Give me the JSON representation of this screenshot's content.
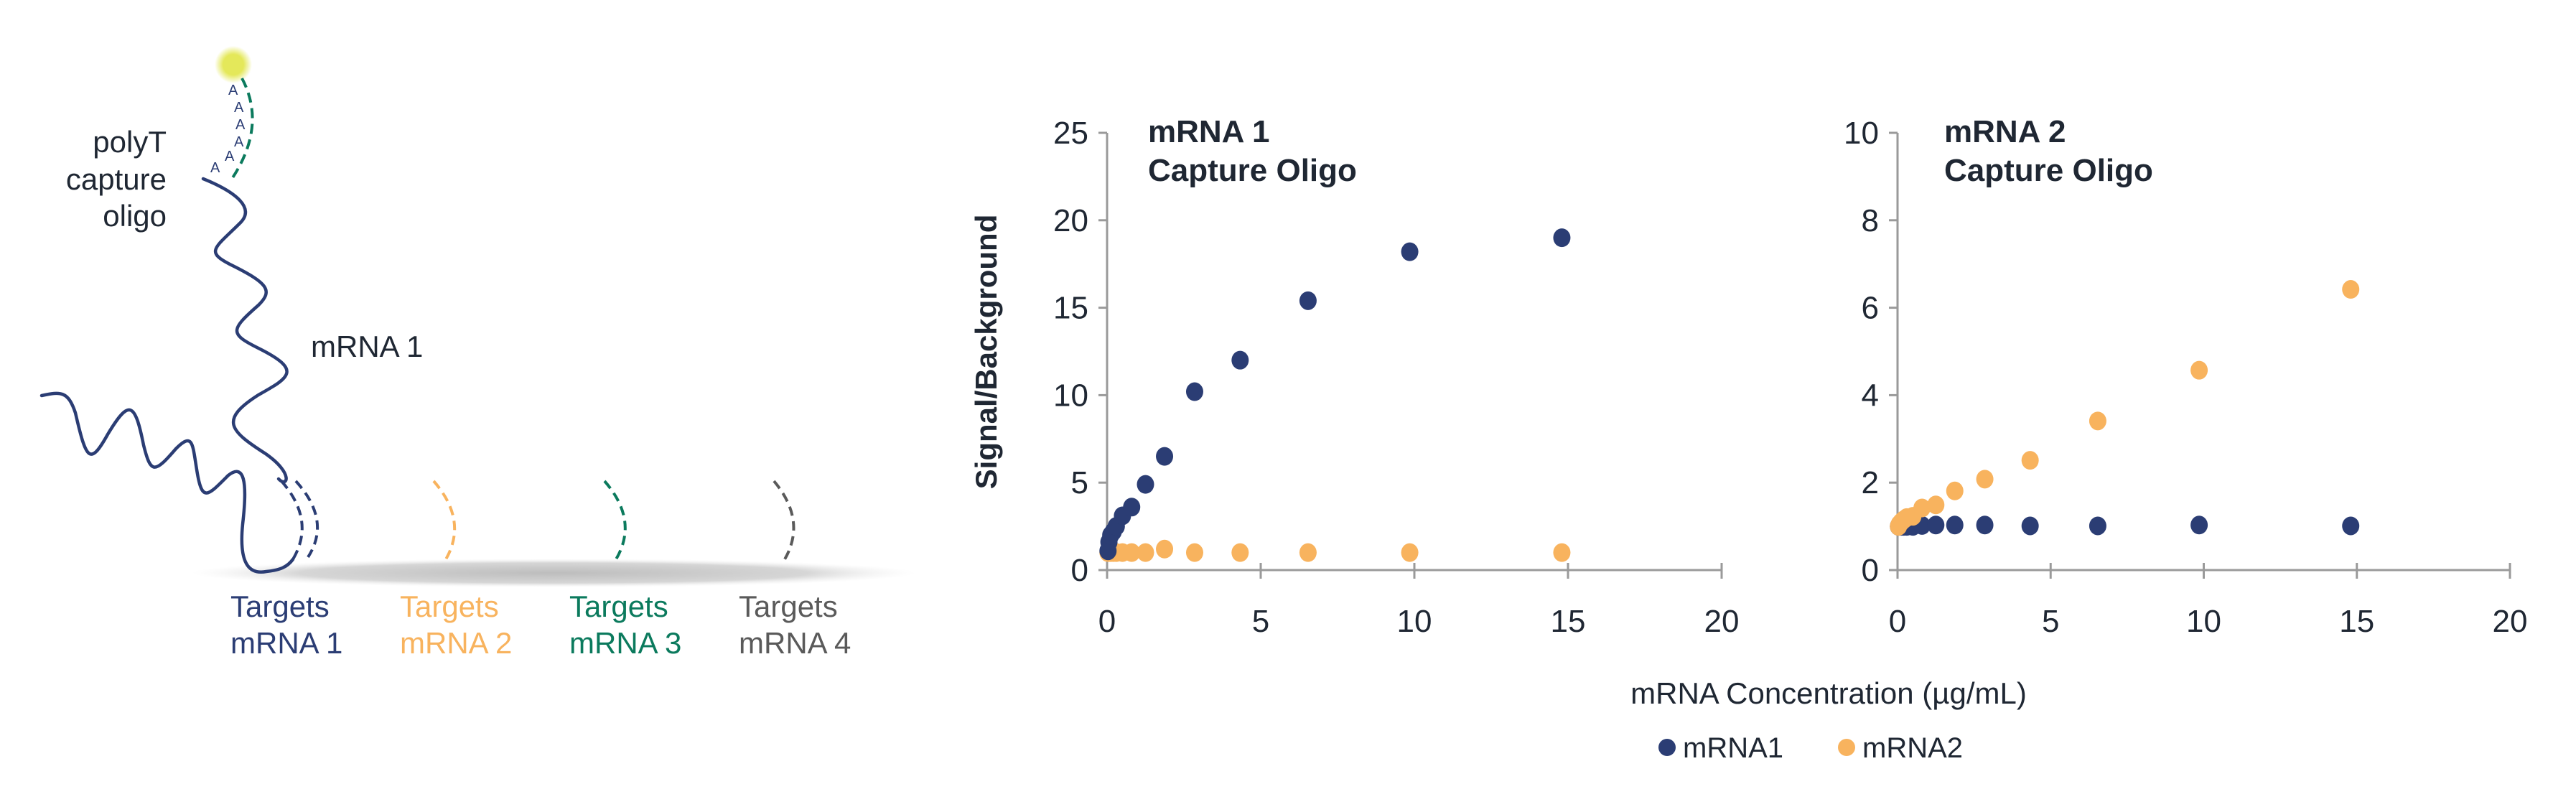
{
  "colors": {
    "mrna1": "#2b3d74",
    "mrna2": "#f8b35e",
    "mrna3": "#0b7a5d",
    "mrna4": "#5a5a5a",
    "text": "#1f2733",
    "axis": "#9a9a9a",
    "glow": "#e4e85a"
  },
  "diagram": {
    "poly_a": [
      "A",
      "A",
      "A",
      "A",
      "A",
      "A"
    ],
    "capture_label": [
      "polyT",
      "capture",
      "oligo"
    ],
    "strand_label": "mRNA 1",
    "targets": [
      {
        "line1": "Targets",
        "line2": "mRNA 1",
        "color": "#2b3d74"
      },
      {
        "line1": "Targets",
        "line2": "mRNA 2",
        "color": "#f8b35e"
      },
      {
        "line1": "Targets",
        "line2": "mRNA 3",
        "color": "#0b7a5d"
      },
      {
        "line1": "Targets",
        "line2": "mRNA 4",
        "color": "#5a5a5a"
      }
    ]
  },
  "chart_data": [
    {
      "type": "scatter",
      "title": [
        "mRNA 1",
        "Capture Oligo"
      ],
      "ylabel": "Signal/Background",
      "xlim": [
        0,
        20
      ],
      "ylim": [
        0,
        25
      ],
      "xticks": [
        0,
        5,
        10,
        15,
        20
      ],
      "yticks": [
        0,
        5,
        10,
        15,
        20,
        25
      ],
      "grid": false,
      "series": [
        {
          "name": "mRNA1",
          "x": [
            0.03,
            0.06,
            0.12,
            0.2,
            0.3,
            0.5,
            0.8,
            1.25,
            1.87,
            2.85,
            4.33,
            6.54,
            9.85,
            14.8
          ],
          "y": [
            1.1,
            1.6,
            2.0,
            2.2,
            2.5,
            3.1,
            3.6,
            4.9,
            6.5,
            10.2,
            12.0,
            15.4,
            18.2,
            19.0
          ]
        },
        {
          "name": "mRNA2",
          "x": [
            0.03,
            0.06,
            0.12,
            0.2,
            0.3,
            0.5,
            0.8,
            1.25,
            1.87,
            2.85,
            4.33,
            6.54,
            9.85,
            14.8
          ],
          "y": [
            1.0,
            1.0,
            1.0,
            1.0,
            1.0,
            1.0,
            1.0,
            1.0,
            1.2,
            1.0,
            1.0,
            1.0,
            1.0,
            1.0
          ]
        }
      ]
    },
    {
      "type": "scatter",
      "title": [
        "mRNA 2",
        "Capture Oligo"
      ],
      "xlim": [
        0,
        20
      ],
      "ylim": [
        0,
        10
      ],
      "xticks": [
        0,
        5,
        10,
        15,
        20
      ],
      "yticks": [
        0,
        2,
        4,
        6,
        8,
        10
      ],
      "grid": false,
      "series": [
        {
          "name": "mRNA1",
          "x": [
            0.03,
            0.06,
            0.12,
            0.2,
            0.3,
            0.5,
            0.8,
            1.25,
            1.87,
            2.85,
            4.33,
            6.54,
            9.85,
            14.8
          ],
          "y": [
            1.0,
            1.0,
            1.0,
            1.0,
            1.0,
            1.0,
            1.02,
            1.03,
            1.03,
            1.03,
            1.01,
            1.01,
            1.03,
            1.01
          ]
        },
        {
          "name": "mRNA2",
          "x": [
            0.03,
            0.06,
            0.12,
            0.2,
            0.3,
            0.5,
            0.8,
            1.25,
            1.87,
            2.85,
            4.33,
            6.54,
            9.85,
            14.8
          ],
          "y": [
            1.0,
            1.05,
            1.1,
            1.15,
            1.2,
            1.23,
            1.42,
            1.49,
            1.81,
            2.08,
            2.51,
            3.41,
            4.57,
            6.42
          ]
        }
      ]
    }
  ],
  "shared_xlabel": "mRNA Concentration (µg/mL)",
  "legend": [
    {
      "label": "mRNA1",
      "color": "#2b3d74"
    },
    {
      "label": "mRNA2",
      "color": "#f8b35e"
    }
  ]
}
